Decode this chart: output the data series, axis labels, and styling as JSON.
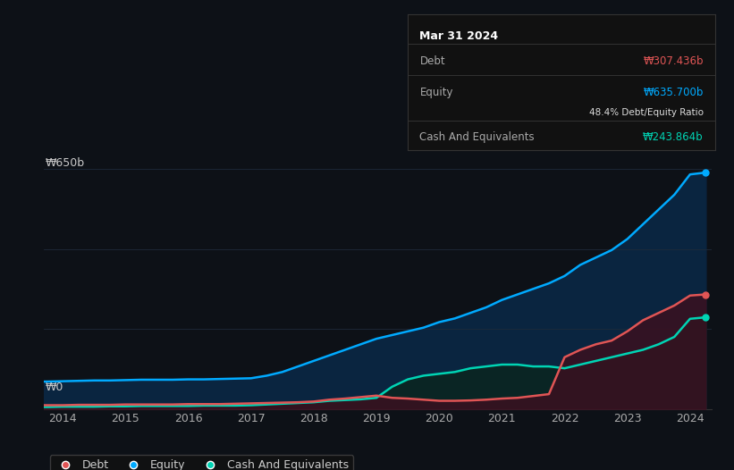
{
  "bg_color": "#0d1117",
  "grid_color": "#1e2a3a",
  "ylabel_top": "₩650b",
  "ylabel_bottom": "₩0",
  "x_ticks": [
    2014,
    2015,
    2016,
    2017,
    2018,
    2019,
    2020,
    2021,
    2022,
    2023,
    2024
  ],
  "ylim": [
    0,
    700
  ],
  "equity_color": "#00aaff",
  "equity_fill": "#0a2540",
  "debt_color": "#e05555",
  "debt_fill": "#3a1020",
  "cash_color": "#00d4b4",
  "cash_fill": "#0a2520",
  "years": [
    2013.0,
    2013.25,
    2013.5,
    2013.75,
    2014.0,
    2014.25,
    2014.5,
    2014.75,
    2015.0,
    2015.25,
    2015.5,
    2015.75,
    2016.0,
    2016.25,
    2016.5,
    2016.75,
    2017.0,
    2017.25,
    2017.5,
    2017.75,
    2018.0,
    2018.25,
    2018.5,
    2018.75,
    2019.0,
    2019.25,
    2019.5,
    2019.75,
    2020.0,
    2020.25,
    2020.5,
    2020.75,
    2021.0,
    2021.25,
    2021.5,
    2021.75,
    2022.0,
    2022.25,
    2022.5,
    2022.75,
    2023.0,
    2023.25,
    2023.5,
    2023.75,
    2024.0,
    2024.25
  ],
  "equity": [
    72,
    73,
    74,
    74,
    75,
    76,
    77,
    77,
    78,
    79,
    79,
    79,
    80,
    80,
    81,
    82,
    83,
    90,
    100,
    115,
    130,
    145,
    160,
    175,
    190,
    200,
    210,
    220,
    235,
    245,
    260,
    275,
    295,
    310,
    325,
    340,
    360,
    390,
    410,
    430,
    460,
    500,
    540,
    580,
    635,
    640
  ],
  "debt": [
    10,
    10,
    10,
    10,
    10,
    11,
    11,
    11,
    12,
    12,
    12,
    12,
    13,
    13,
    13,
    14,
    15,
    16,
    17,
    18,
    20,
    25,
    28,
    32,
    36,
    30,
    28,
    25,
    22,
    22,
    23,
    25,
    28,
    30,
    35,
    40,
    140,
    160,
    175,
    185,
    210,
    240,
    260,
    280,
    307,
    310
  ],
  "cash": [
    5,
    5,
    5,
    5,
    6,
    6,
    6,
    7,
    7,
    8,
    8,
    8,
    8,
    9,
    9,
    9,
    10,
    12,
    14,
    16,
    18,
    22,
    24,
    26,
    30,
    60,
    80,
    90,
    95,
    100,
    110,
    115,
    120,
    120,
    115,
    115,
    110,
    120,
    130,
    140,
    150,
    160,
    175,
    195,
    244,
    248
  ],
  "tooltip_date": "Mar 31 2024",
  "tooltip_debt_label": "Debt",
  "tooltip_debt_value": "₩307.436b",
  "tooltip_equity_label": "Equity",
  "tooltip_equity_value": "₩635.700b",
  "tooltip_ratio": "48.4% Debt/Equity Ratio",
  "tooltip_cash_label": "Cash And Equivalents",
  "tooltip_cash_value": "₩243.864b",
  "legend_debt": "Debt",
  "legend_equity": "Equity",
  "legend_cash": "Cash And Equivalents"
}
